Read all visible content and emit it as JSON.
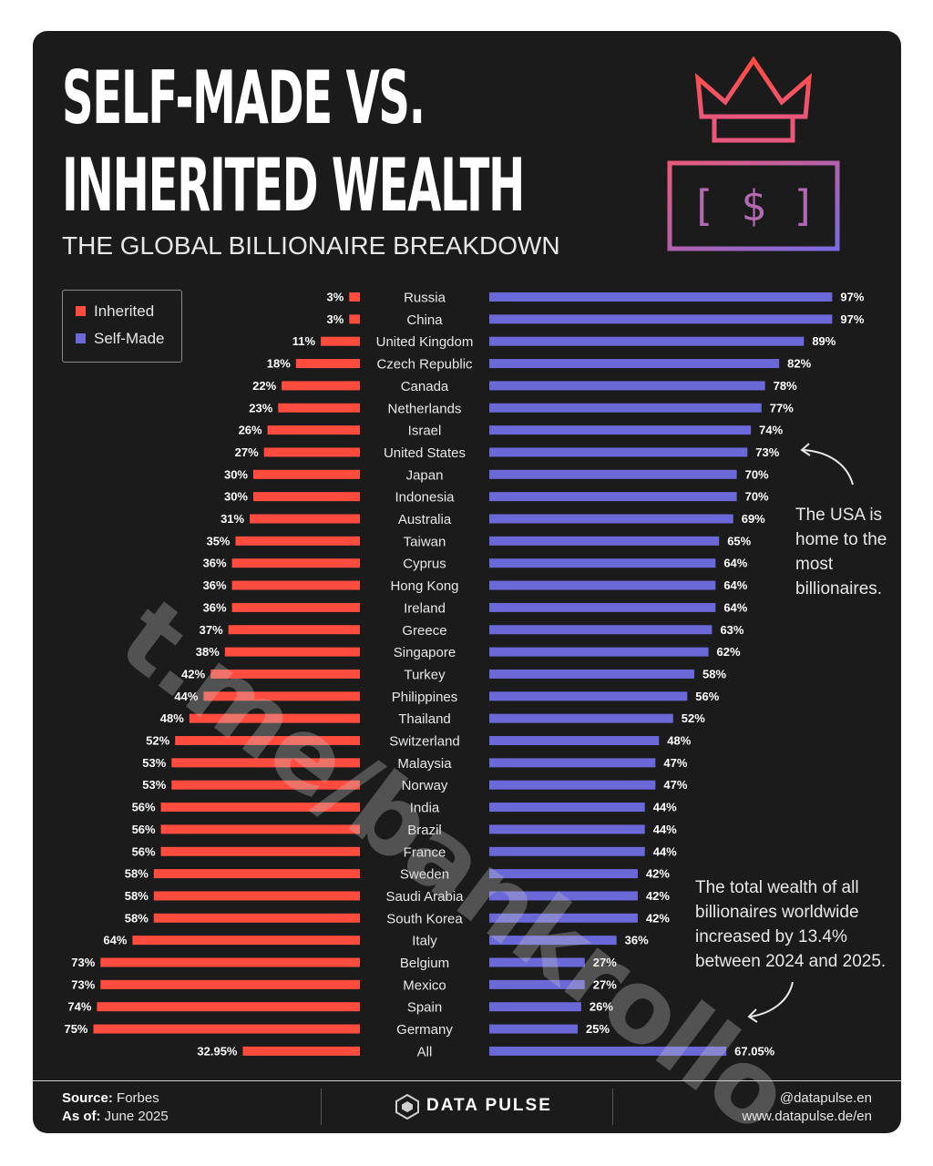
{
  "header": {
    "title_line1": "SELF-MADE VS.",
    "title_line2": "INHERITED WEALTH",
    "subtitle": "THE GLOBAL BILLIONAIRE BREAKDOWN"
  },
  "icons": {
    "crown": "crown-icon",
    "bill": "dollar-bill-icon",
    "bill_text": "[ $ ]"
  },
  "colors": {
    "inherited": "#ff4c3f",
    "self_made": "#6b68d8",
    "background": "#1b1b1b"
  },
  "annotations": {
    "usa": "The USA is home to the most billionaires.",
    "total": "The total wealth of all billionaires worldwide increased by 13.4% between 2024 and 2025."
  },
  "watermark": "t.me/bankrollo",
  "footer": {
    "source_label": "Source:",
    "source_value": "Forbes",
    "asof_label": "As of:",
    "asof_value": "June 2025",
    "brand": "DATA PULSE",
    "handle": "@datapulse.en",
    "website": "www.datapulse.de/en"
  },
  "chart_data": {
    "type": "bar",
    "legend_position": "top-left",
    "legend": [
      "Inherited",
      "Self-Made"
    ],
    "categories": [
      "Russia",
      "China",
      "United Kingdom",
      "Czech Republic",
      "Canada",
      "Netherlands",
      "Israel",
      "United States",
      "Japan",
      "Indonesia",
      "Australia",
      "Taiwan",
      "Cyprus",
      "Hong Kong",
      "Ireland",
      "Greece",
      "Singapore",
      "Turkey",
      "Philippines",
      "Thailand",
      "Switzerland",
      "Malaysia",
      "Norway",
      "India",
      "Brazil",
      "France",
      "Sweden",
      "Saudi Arabia",
      "South Korea",
      "Italy",
      "Belgium",
      "Mexico",
      "Spain",
      "Germany",
      "All"
    ],
    "series": [
      {
        "name": "Inherited",
        "values": [
          3,
          3,
          11,
          18,
          22,
          23,
          26,
          27,
          30,
          30,
          31,
          35,
          36,
          36,
          36,
          37,
          38,
          42,
          44,
          48,
          52,
          53,
          53,
          56,
          56,
          56,
          58,
          58,
          58,
          64,
          73,
          73,
          74,
          75,
          32.95
        ],
        "labels": [
          "3%",
          "3%",
          "11%",
          "18%",
          "22%",
          "23%",
          "26%",
          "27%",
          "30%",
          "30%",
          "31%",
          "35%",
          "36%",
          "36%",
          "36%",
          "37%",
          "38%",
          "42%",
          "44%",
          "48%",
          "52%",
          "53%",
          "53%",
          "56%",
          "56%",
          "56%",
          "58%",
          "58%",
          "58%",
          "64%",
          "73%",
          "73%",
          "74%",
          "75%",
          "32.95%"
        ]
      },
      {
        "name": "Self-Made",
        "values": [
          97,
          97,
          89,
          82,
          78,
          77,
          74,
          73,
          70,
          70,
          69,
          65,
          64,
          64,
          64,
          63,
          62,
          58,
          56,
          52,
          48,
          47,
          47,
          44,
          44,
          44,
          42,
          42,
          42,
          36,
          27,
          27,
          26,
          25,
          67.05
        ],
        "labels": [
          "97%",
          "97%",
          "89%",
          "82%",
          "78%",
          "77%",
          "74%",
          "73%",
          "70%",
          "70%",
          "69%",
          "65%",
          "64%",
          "64%",
          "64%",
          "63%",
          "62%",
          "58%",
          "56%",
          "52%",
          "48%",
          "47%",
          "47%",
          "44%",
          "44%",
          "44%",
          "42%",
          "42%",
          "42%",
          "36%",
          "27%",
          "27%",
          "26%",
          "25%",
          "67.05%"
        ]
      }
    ],
    "xlim": [
      0,
      100
    ]
  }
}
